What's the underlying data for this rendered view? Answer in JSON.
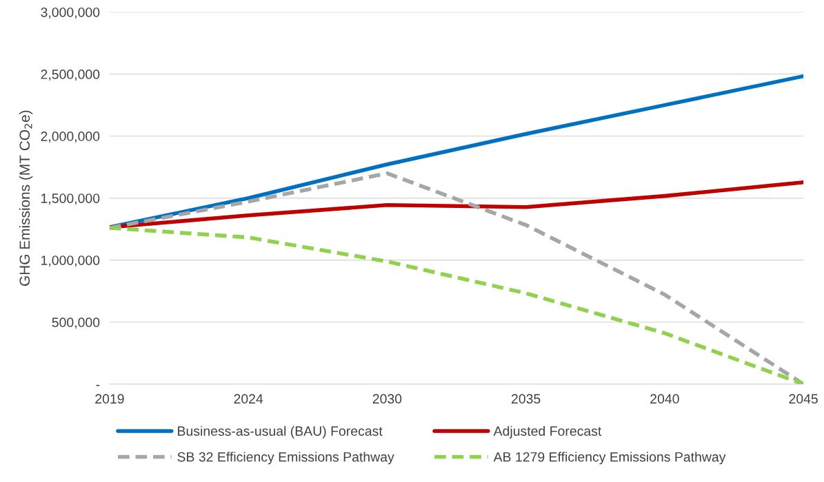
{
  "chart_data": {
    "type": "line",
    "ylabel": "GHG Emissions (MT CO$_{2}$e)",
    "categories": [
      "2019",
      "2024",
      "2030",
      "2035",
      "2040",
      "2045"
    ],
    "series": [
      {
        "name": "Business-as-usual (BAU) Forecast",
        "color": "#0070c0",
        "line_style": "solid",
        "values": [
          1265000,
          1500000,
          1772000,
          2017000,
          2250000,
          2483000
        ]
      },
      {
        "name": "Adjusted Forecast",
        "color": "#c00000",
        "line_style": "solid",
        "values": [
          1265000,
          1361000,
          1444000,
          1428000,
          1517000,
          1628000
        ]
      },
      {
        "name": "SB 32 Efficiency Emissions Pathway",
        "color": "#a6a6a6",
        "line_style": "dashed",
        "values": [
          1260000,
          1472000,
          1700000,
          1283000,
          722000,
          0
        ]
      },
      {
        "name": "AB 1279 Efficiency Emissions Pathway",
        "color": "#92d050",
        "line_style": "dashed",
        "values": [
          1260000,
          1183000,
          989000,
          733000,
          411000,
          0
        ]
      }
    ],
    "ylim": [
      0,
      3000000
    ],
    "yticks": [
      {
        "value": 0,
        "label": "-"
      },
      {
        "value": 500000,
        "label": "500,000"
      },
      {
        "value": 1000000,
        "label": "1,000,000"
      },
      {
        "value": 1500000,
        "label": "1,500,000"
      },
      {
        "value": 2000000,
        "label": "2,000,000"
      },
      {
        "value": 2500000,
        "label": "2,500,000"
      },
      {
        "value": 3000000,
        "label": "3,000,000"
      }
    ],
    "grid": "y",
    "legend": "bottom",
    "marker": "none"
  }
}
